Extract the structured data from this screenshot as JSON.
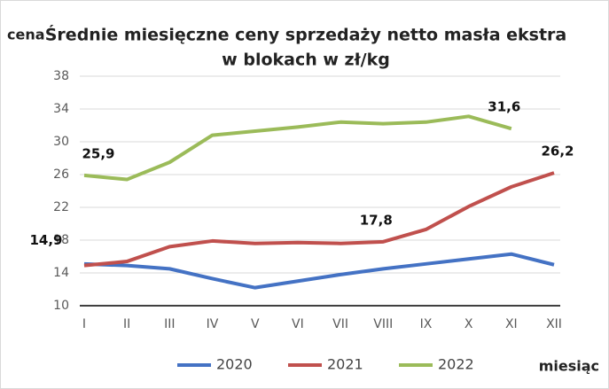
{
  "chart_data": {
    "type": "line",
    "title_lines": [
      "Średnie miesięczne ceny sprzedaży netto masła ekstra",
      "w blokach  w zł/kg"
    ],
    "y_label": "cena",
    "x_label": "miesiąc",
    "categories": [
      "I",
      "II",
      "III",
      "IV",
      "V",
      "VI",
      "VII",
      "VIII",
      "IX",
      "X",
      "XI",
      "XII"
    ],
    "series": [
      {
        "name": "2020",
        "color": "#4472c4",
        "values": [
          15.1,
          14.9,
          14.5,
          13.3,
          12.2,
          13.0,
          13.8,
          14.5,
          15.1,
          15.7,
          16.3,
          15.0
        ],
        "value_labels": [
          null,
          null,
          null,
          null,
          null,
          null,
          null,
          null,
          null,
          null,
          null,
          null
        ]
      },
      {
        "name": "2021",
        "color": "#c0504d",
        "values": [
          14.9,
          15.4,
          17.2,
          17.9,
          17.6,
          17.7,
          17.6,
          17.8,
          19.3,
          22.1,
          24.5,
          26.2
        ],
        "value_labels": [
          "14,9",
          null,
          null,
          null,
          null,
          null,
          null,
          "17,8",
          null,
          null,
          null,
          "26,2"
        ]
      },
      {
        "name": "2022",
        "color": "#9bbb59",
        "values": [
          25.9,
          25.4,
          27.5,
          30.8,
          31.3,
          31.8,
          32.4,
          32.2,
          32.4,
          33.1,
          31.6,
          null
        ],
        "value_labels": [
          "25,9",
          null,
          null,
          null,
          null,
          null,
          null,
          null,
          null,
          null,
          "31,6",
          null
        ]
      }
    ],
    "ylim": [
      10,
      38
    ],
    "yticks": [
      10,
      14,
      18,
      22,
      26,
      30,
      34,
      38
    ],
    "grid": true,
    "legend": "bottom"
  }
}
